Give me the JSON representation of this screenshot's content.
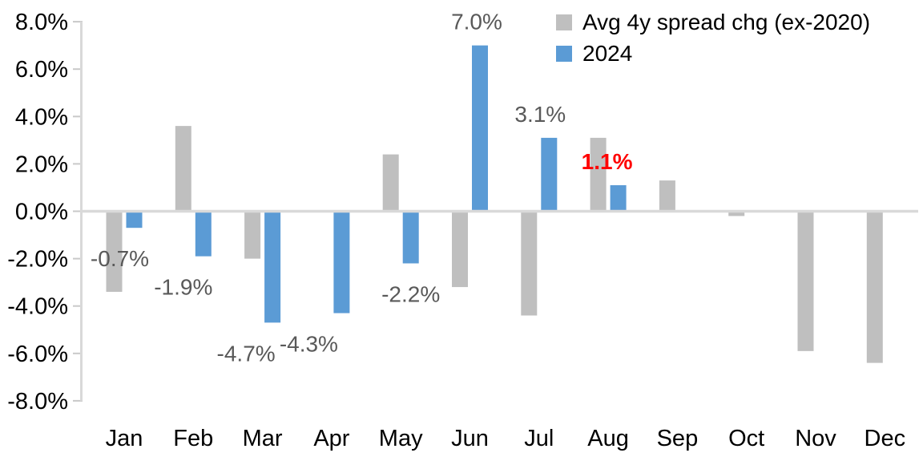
{
  "chart_data": {
    "type": "bar",
    "title": "",
    "xlabel": "",
    "ylabel": "",
    "categories": [
      "Jan",
      "Feb",
      "Mar",
      "Apr",
      "May",
      "Jun",
      "Jul",
      "Aug",
      "Sep",
      "Oct",
      "Nov",
      "Dec"
    ],
    "series": [
      {
        "name": "Avg 4y spread chg (ex-2020)",
        "color": "#BFBFBF",
        "values": [
          -3.4,
          3.6,
          -2.0,
          0.0,
          2.4,
          -3.2,
          -4.4,
          3.1,
          1.3,
          -0.2,
          -5.9,
          -6.4
        ]
      },
      {
        "name": "2024",
        "color": "#5B9BD5",
        "values": [
          -0.7,
          -1.9,
          -4.7,
          -4.3,
          -2.2,
          7.0,
          3.1,
          1.1,
          null,
          null,
          null,
          null
        ]
      }
    ],
    "annotations": [
      {
        "month": "Jan",
        "text": "-0.7%",
        "color": "#595959",
        "bold": false,
        "dx": -18
      },
      {
        "month": "Feb",
        "text": "-1.9%",
        "color": "#595959",
        "bold": false,
        "dx": -25
      },
      {
        "month": "Mar",
        "text": "-4.7%",
        "color": "#595959",
        "bold": false,
        "dx": -33
      },
      {
        "month": "Apr",
        "text": "-4.3%",
        "color": "#595959",
        "bold": false,
        "dx": -41
      },
      {
        "month": "May",
        "text": "-2.2%",
        "color": "#595959",
        "bold": false,
        "dx": 0
      },
      {
        "month": "Jun",
        "text": "7.0%",
        "color": "#595959",
        "bold": false,
        "dx": -4
      },
      {
        "month": "Jul",
        "text": "3.1%",
        "color": "#595959",
        "bold": false,
        "dx": -11
      },
      {
        "month": "Aug",
        "text": "1.1%",
        "color": "#FF0000",
        "bold": true,
        "dx": -14
      }
    ],
    "y_axis": {
      "min": -8,
      "max": 8,
      "step": 2,
      "tick_labels": [
        "8.0%",
        "6.0%",
        "4.0%",
        "2.0%",
        "0.0%",
        "-2.0%",
        "-4.0%",
        "-6.0%",
        "-8.0%"
      ]
    },
    "legend": {
      "position": "top-right"
    },
    "grid": false,
    "colors": {
      "axis_line": "#D9D9D9",
      "tick_mark": "#C9C9C9",
      "axis_text": "#000000",
      "annotation_gray": "#595959",
      "annotation_highlight": "#FF0000",
      "series_gray": "#BFBFBF",
      "series_blue": "#5B9BD5"
    }
  }
}
